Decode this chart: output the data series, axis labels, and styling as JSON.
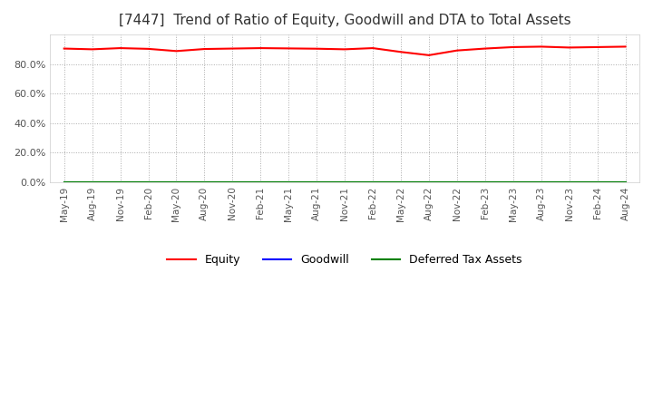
{
  "title": "[7447]  Trend of Ratio of Equity, Goodwill and DTA to Total Assets",
  "title_fontsize": 11,
  "background_color": "#ffffff",
  "grid_color": "#aaaaaa",
  "x_labels": [
    "May-19",
    "Aug-19",
    "Nov-19",
    "Feb-20",
    "May-20",
    "Aug-20",
    "Nov-20",
    "Feb-21",
    "May-21",
    "Aug-21",
    "Nov-21",
    "Feb-22",
    "May-22",
    "Aug-22",
    "Nov-22",
    "Feb-23",
    "May-23",
    "Aug-23",
    "Nov-23",
    "Feb-24",
    "Aug-24"
  ],
  "equity": [
    90.5,
    90.0,
    90.8,
    90.3,
    88.8,
    90.2,
    90.5,
    90.8,
    90.6,
    90.4,
    90.0,
    90.8,
    88.2,
    86.0,
    89.2,
    90.5,
    91.5,
    91.8,
    91.2,
    91.5,
    91.8
  ],
  "goodwill": [
    0.0,
    0.0,
    0.0,
    0.0,
    0.0,
    0.0,
    0.0,
    0.0,
    0.0,
    0.0,
    0.0,
    0.0,
    0.0,
    0.0,
    0.0,
    0.0,
    0.0,
    0.0,
    0.0,
    0.0,
    0.0
  ],
  "dta": [
    0.0,
    0.0,
    0.0,
    0.0,
    0.0,
    0.0,
    0.0,
    0.0,
    0.0,
    0.0,
    0.0,
    0.0,
    0.0,
    0.0,
    0.0,
    0.0,
    0.0,
    0.0,
    0.0,
    0.0,
    0.0
  ],
  "equity_color": "#ff0000",
  "goodwill_color": "#0000ff",
  "dta_color": "#008000",
  "ylim_min": 0,
  "ylim_max": 100,
  "yticks": [
    0,
    20,
    40,
    60,
    80
  ],
  "legend_labels": [
    "Equity",
    "Goodwill",
    "Deferred Tax Assets"
  ]
}
